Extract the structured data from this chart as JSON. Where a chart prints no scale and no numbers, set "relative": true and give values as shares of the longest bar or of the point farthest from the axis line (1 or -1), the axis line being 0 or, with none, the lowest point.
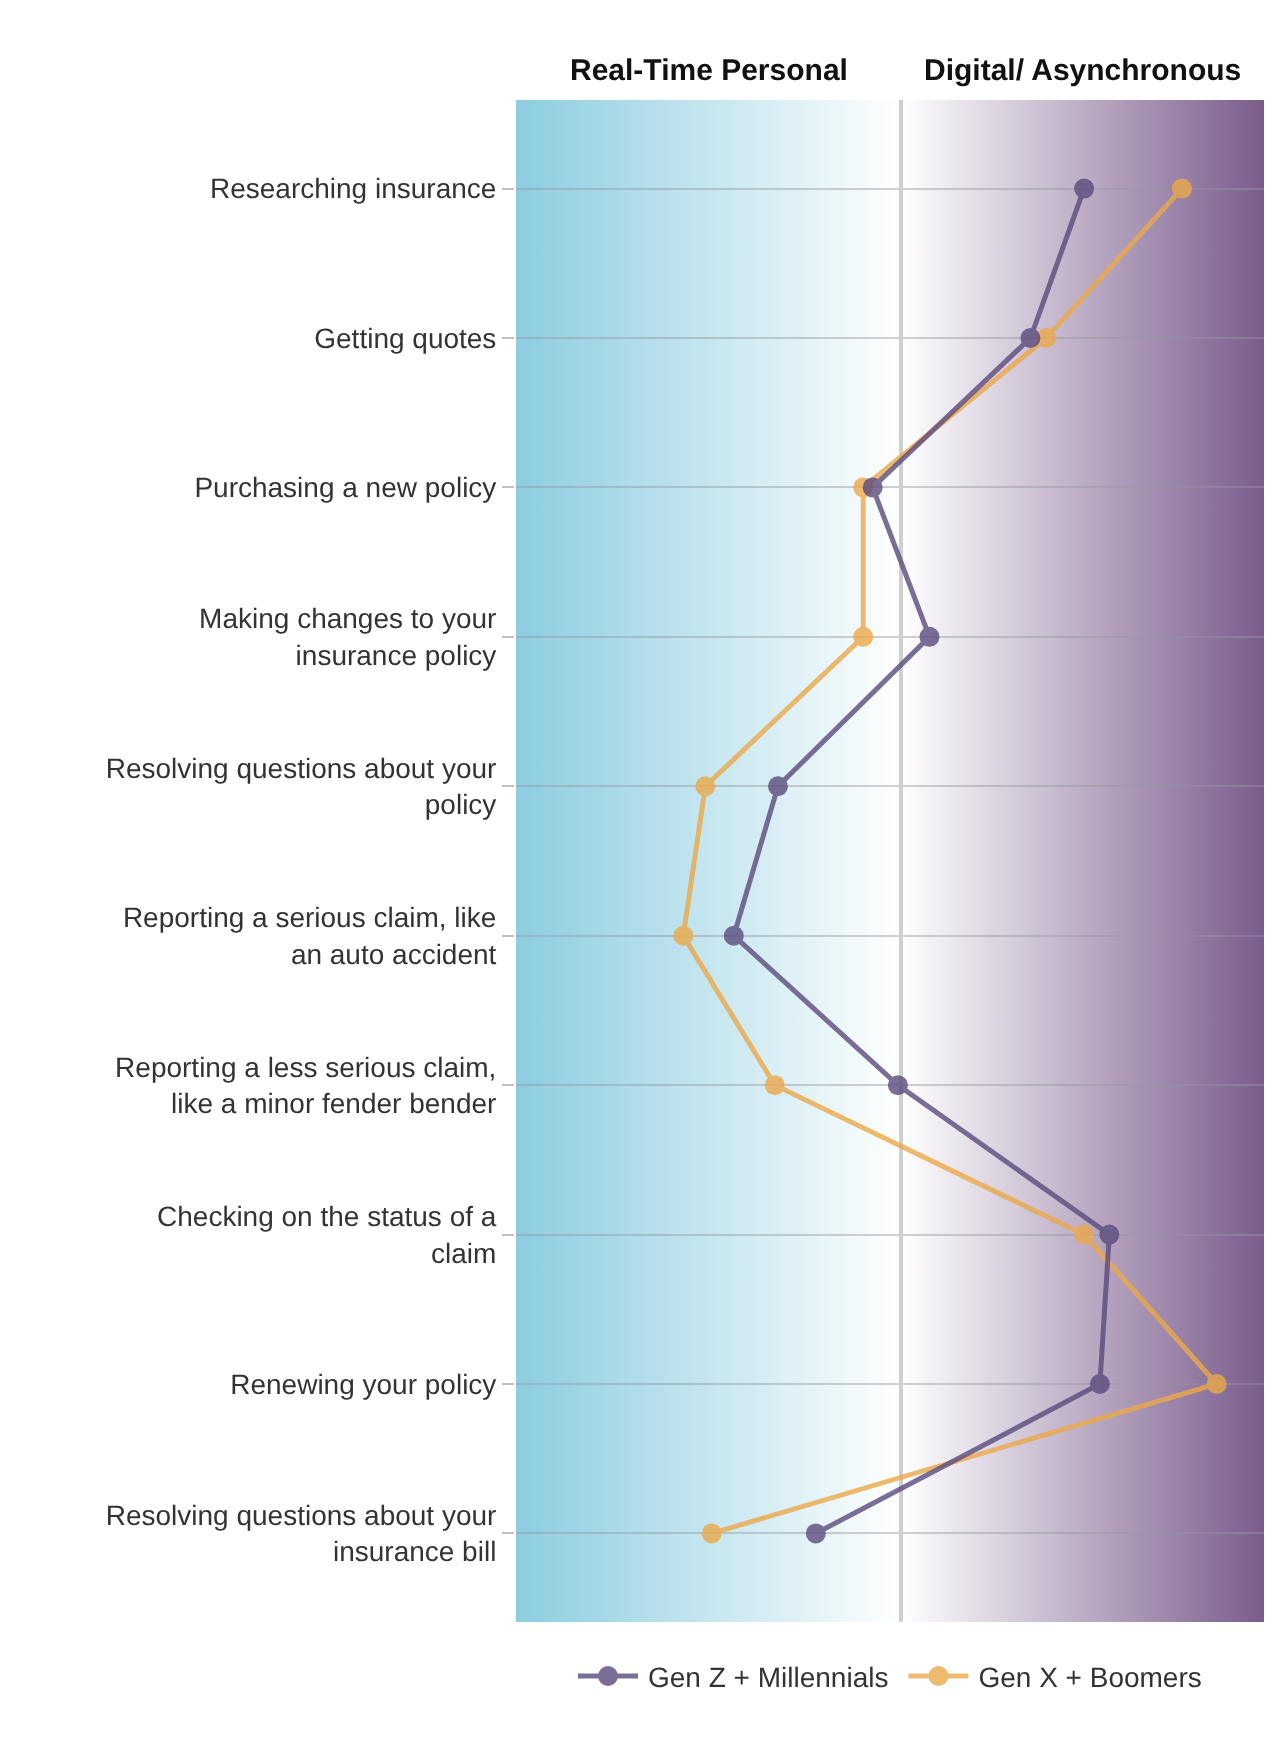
{
  "chart_data": {
    "type": "line",
    "orientation": "horizontal",
    "relative": true,
    "categories": [
      "Researching insurance",
      "Getting quotes",
      "Purchasing a new policy",
      "Making changes to your insurance policy",
      "Resolving questions about your policy",
      "Reporting a serious claim, like an auto accident",
      "Reporting a less serious claim, like a minor fender bender",
      "Checking on the status of a claim",
      "Renewing your policy",
      "Resolving questions about your insurance bill"
    ],
    "series": [
      {
        "name": "Gen Z + Millennials",
        "color": "#5b4b7d",
        "values": [
          0.58,
          0.41,
          -0.09,
          0.09,
          -0.39,
          -0.53,
          -0.01,
          0.66,
          0.63,
          -0.27
        ]
      },
      {
        "name": "Gen X + Boomers",
        "color": "#eba94a",
        "values": [
          0.89,
          0.46,
          -0.12,
          -0.12,
          -0.62,
          -0.69,
          -0.4,
          0.58,
          1,
          -0.6
        ]
      }
    ],
    "bands": [
      {
        "axis": "x",
        "from": -1.22,
        "to": 0,
        "label": "Real-Time Personal",
        "color": "#8ccde0"
      },
      {
        "axis": "x",
        "from": 0,
        "to": 1.15,
        "label": "Digital/ Asynchronous",
        "color": "#7a5c8c"
      }
    ],
    "marker": "circle",
    "grid": "y",
    "legend": "bottom"
  }
}
